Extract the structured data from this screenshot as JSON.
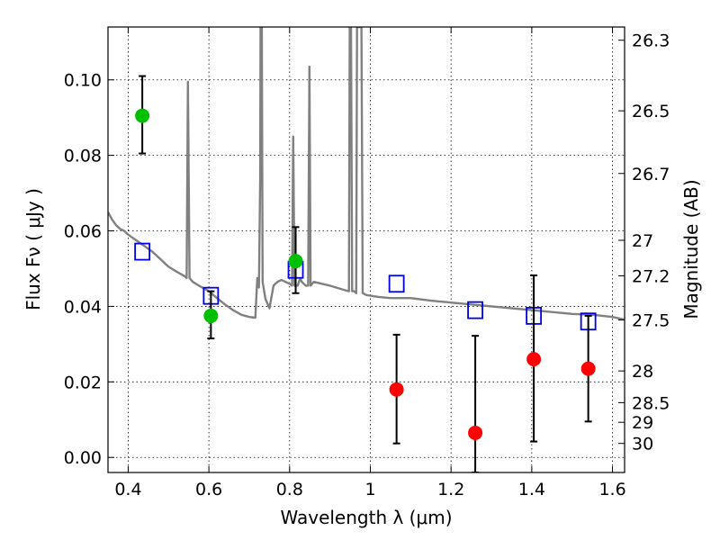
{
  "chart_data": {
    "type": "scatter",
    "xlabel": "Wavelength  λ (μm)",
    "ylabel": "Flux  Fν  ( μJy )",
    "ylabel_right": "Magnitude (AB)",
    "xlim": [
      0.35,
      1.63
    ],
    "ylim": [
      -0.004,
      0.114
    ],
    "grid": true,
    "x_ticks": [
      0.4,
      0.6,
      0.8,
      1.0,
      1.2,
      1.4,
      1.6
    ],
    "x_tick_labels": [
      "0.4",
      "0.6",
      "0.8",
      "1",
      "1.2",
      "1.4",
      "1.6"
    ],
    "y_ticks": [
      0.0,
      0.02,
      0.04,
      0.06,
      0.08,
      0.1
    ],
    "y_tick_labels": [
      "0.00",
      "0.02",
      "0.04",
      "0.06",
      "0.08",
      "0.10"
    ],
    "right_ticks": [
      {
        "flux": 0.1105,
        "label": "26.3"
      },
      {
        "flux": 0.0918,
        "label": "26.5"
      },
      {
        "flux": 0.0752,
        "label": "26.7"
      },
      {
        "flux": 0.0575,
        "label": "27"
      },
      {
        "flux": 0.0481,
        "label": "27.2"
      },
      {
        "flux": 0.0364,
        "label": "27.5"
      },
      {
        "flux": 0.0229,
        "label": "28"
      },
      {
        "flux": 0.0145,
        "label": "28.5"
      },
      {
        "flux": 0.0093,
        "label": "29"
      },
      {
        "flux": 0.0037,
        "label": "30"
      }
    ],
    "series": [
      {
        "marker": "line",
        "color": "#808080",
        "points": [
          [
            0.35,
            0.065
          ],
          [
            0.36,
            0.063
          ],
          [
            0.37,
            0.0615
          ],
          [
            0.38,
            0.0605
          ],
          [
            0.39,
            0.06
          ],
          [
            0.4,
            0.059
          ],
          [
            0.42,
            0.0575
          ],
          [
            0.44,
            0.056
          ],
          [
            0.46,
            0.0545
          ],
          [
            0.48,
            0.0525
          ],
          [
            0.5,
            0.0505
          ],
          [
            0.52,
            0.0492
          ],
          [
            0.54,
            0.048
          ],
          [
            0.545,
            0.0475
          ],
          [
            0.548,
            0.0995
          ],
          [
            0.552,
            0.0475
          ],
          [
            0.56,
            0.0465
          ],
          [
            0.58,
            0.0452
          ],
          [
            0.6,
            0.044
          ],
          [
            0.62,
            0.0422
          ],
          [
            0.64,
            0.0405
          ],
          [
            0.66,
            0.039
          ],
          [
            0.68,
            0.0378
          ],
          [
            0.7,
            0.0372
          ],
          [
            0.715,
            0.037
          ],
          [
            0.72,
            0.0475
          ],
          [
            0.724,
            0.045
          ],
          [
            0.727,
            0.0735
          ],
          [
            0.728,
            0.114
          ],
          [
            0.731,
            0.114
          ],
          [
            0.733,
            0.0465
          ],
          [
            0.74,
            0.042
          ],
          [
            0.75,
            0.0395
          ],
          [
            0.76,
            0.0455
          ],
          [
            0.77,
            0.0465
          ],
          [
            0.78,
            0.047
          ],
          [
            0.8,
            0.046
          ],
          [
            0.806,
            0.0455
          ],
          [
            0.809,
            0.085
          ],
          [
            0.812,
            0.0455
          ],
          [
            0.82,
            0.0455
          ],
          [
            0.826,
            0.0475
          ],
          [
            0.83,
            0.0465
          ],
          [
            0.84,
            0.0455
          ],
          [
            0.846,
            0.0455
          ],
          [
            0.849,
            0.1035
          ],
          [
            0.852,
            0.0455
          ],
          [
            0.86,
            0.0465
          ],
          [
            0.88,
            0.046
          ],
          [
            0.9,
            0.0455
          ],
          [
            0.93,
            0.0445
          ],
          [
            0.947,
            0.044
          ],
          [
            0.949,
            0.114
          ],
          [
            0.952,
            0.114
          ],
          [
            0.955,
            0.044
          ],
          [
            0.96,
            0.044
          ],
          [
            0.965,
            0.0435
          ],
          [
            0.967,
            0.114
          ],
          [
            0.978,
            0.114
          ],
          [
            0.981,
            0.0435
          ],
          [
            0.99,
            0.043
          ],
          [
            1.02,
            0.0425
          ],
          [
            1.05,
            0.0422
          ],
          [
            1.1,
            0.0422
          ],
          [
            1.15,
            0.0415
          ],
          [
            1.2,
            0.041
          ],
          [
            1.25,
            0.0405
          ],
          [
            1.3,
            0.04
          ],
          [
            1.35,
            0.0395
          ],
          [
            1.4,
            0.039
          ],
          [
            1.45,
            0.0385
          ],
          [
            1.5,
            0.038
          ],
          [
            1.55,
            0.0378
          ],
          [
            1.6,
            0.0372
          ],
          [
            1.63,
            0.0365
          ]
        ]
      },
      {
        "marker": "open-square",
        "color": "#0000ee",
        "points": [
          [
            0.435,
            0.0545
          ],
          [
            0.605,
            0.0428
          ],
          [
            0.815,
            0.0497
          ],
          [
            1.065,
            0.046
          ],
          [
            1.26,
            0.039
          ],
          [
            1.405,
            0.0375
          ],
          [
            1.54,
            0.036
          ]
        ]
      },
      {
        "marker": "filled-circle",
        "color": "#00c000",
        "points": [
          [
            0.435,
            0.0905
          ],
          [
            0.605,
            0.0375
          ],
          [
            0.815,
            0.052
          ]
        ],
        "err_low": [
          [
            0.435,
            0.0805
          ],
          [
            0.605,
            0.0315
          ],
          [
            0.815,
            0.0435
          ]
        ],
        "err_high": [
          [
            0.435,
            0.101
          ],
          [
            0.605,
            0.044
          ],
          [
            0.815,
            0.061
          ]
        ]
      },
      {
        "marker": "filled-circle",
        "color": "#ff0000",
        "points": [
          [
            1.065,
            0.018
          ],
          [
            1.26,
            0.0065
          ],
          [
            1.405,
            0.026
          ],
          [
            1.54,
            0.0235
          ]
        ],
        "err_low": [
          [
            1.065,
            0.0037
          ],
          [
            1.26,
            -0.004
          ],
          [
            1.405,
            0.0042
          ],
          [
            1.54,
            0.0095
          ]
        ],
        "err_high": [
          [
            1.065,
            0.0325
          ],
          [
            1.26,
            0.0322
          ],
          [
            1.405,
            0.0482
          ],
          [
            1.54,
            0.0375
          ]
        ]
      }
    ]
  }
}
